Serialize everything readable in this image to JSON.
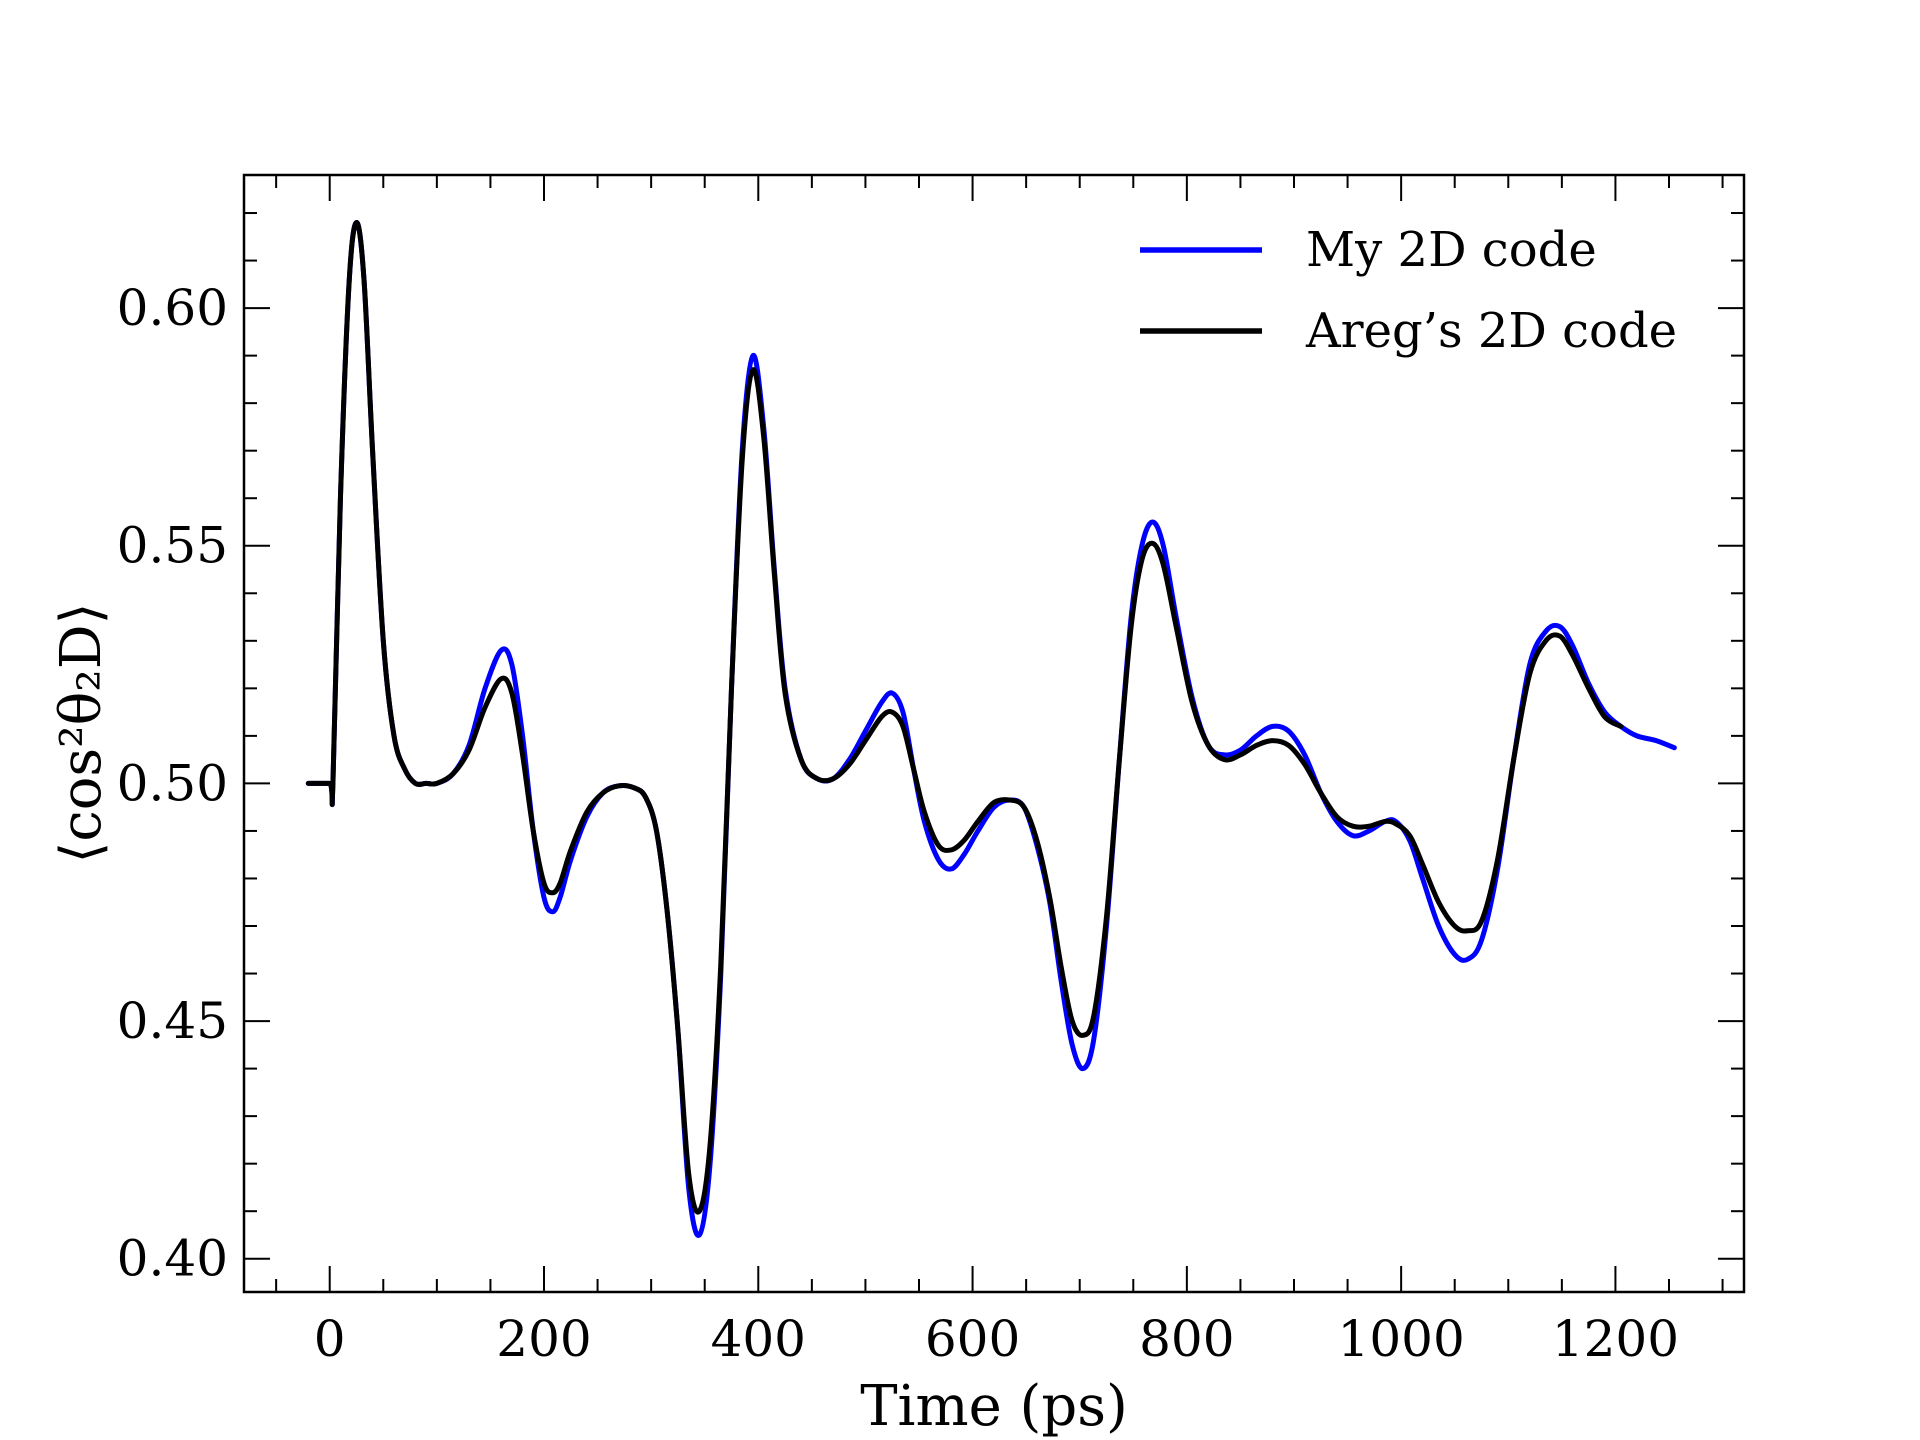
{
  "chart_data": {
    "type": "line",
    "title": "",
    "xlabel": "Time (ps)",
    "ylabel": "⟨cos²θ₂D⟩",
    "xlim": [
      -80,
      1320
    ],
    "ylim": [
      0.393,
      0.628
    ],
    "xticks": [
      0,
      200,
      400,
      600,
      800,
      1000,
      1200
    ],
    "xtick_labels": [
      "0",
      "200",
      "400",
      "600",
      "800",
      "1000",
      "1200"
    ],
    "yticks": [
      0.4,
      0.45,
      0.5,
      0.55,
      0.6
    ],
    "ytick_labels": [
      "0.40",
      "0.45",
      "0.50",
      "0.55",
      "0.60"
    ],
    "grid": false,
    "legend_position": "top-right",
    "series": [
      {
        "name": "My 2D code",
        "color": "#0000ff",
        "points": [
          [
            -20,
            0.5
          ],
          [
            0,
            0.5
          ],
          [
            3,
            0.5
          ],
          [
            10,
            0.56
          ],
          [
            18,
            0.605
          ],
          [
            25,
            0.618
          ],
          [
            32,
            0.606
          ],
          [
            40,
            0.57
          ],
          [
            50,
            0.53
          ],
          [
            60,
            0.51
          ],
          [
            70,
            0.503
          ],
          [
            80,
            0.5
          ],
          [
            90,
            0.5
          ],
          [
            100,
            0.5
          ],
          [
            115,
            0.502
          ],
          [
            130,
            0.508
          ],
          [
            145,
            0.52
          ],
          [
            160,
            0.528
          ],
          [
            170,
            0.525
          ],
          [
            180,
            0.51
          ],
          [
            190,
            0.49
          ],
          [
            200,
            0.476
          ],
          [
            208,
            0.473
          ],
          [
            215,
            0.476
          ],
          [
            225,
            0.484
          ],
          [
            240,
            0.493
          ],
          [
            255,
            0.498
          ],
          [
            270,
            0.4995
          ],
          [
            285,
            0.499
          ],
          [
            295,
            0.497
          ],
          [
            305,
            0.49
          ],
          [
            315,
            0.473
          ],
          [
            325,
            0.448
          ],
          [
            335,
            0.415
          ],
          [
            345,
            0.405
          ],
          [
            355,
            0.42
          ],
          [
            365,
            0.46
          ],
          [
            375,
            0.52
          ],
          [
            385,
            0.57
          ],
          [
            395,
            0.59
          ],
          [
            405,
            0.575
          ],
          [
            415,
            0.545
          ],
          [
            425,
            0.52
          ],
          [
            440,
            0.505
          ],
          [
            455,
            0.501
          ],
          [
            470,
            0.501
          ],
          [
            485,
            0.505
          ],
          [
            500,
            0.511
          ],
          [
            515,
            0.517
          ],
          [
            525,
            0.519
          ],
          [
            535,
            0.515
          ],
          [
            545,
            0.503
          ],
          [
            555,
            0.492
          ],
          [
            568,
            0.484
          ],
          [
            580,
            0.482
          ],
          [
            592,
            0.485
          ],
          [
            605,
            0.49
          ],
          [
            620,
            0.495
          ],
          [
            635,
            0.4965
          ],
          [
            648,
            0.495
          ],
          [
            660,
            0.487
          ],
          [
            672,
            0.475
          ],
          [
            683,
            0.458
          ],
          [
            693,
            0.445
          ],
          [
            703,
            0.44
          ],
          [
            713,
            0.446
          ],
          [
            725,
            0.47
          ],
          [
            737,
            0.505
          ],
          [
            748,
            0.535
          ],
          [
            758,
            0.55
          ],
          [
            768,
            0.555
          ],
          [
            778,
            0.55
          ],
          [
            790,
            0.535
          ],
          [
            805,
            0.518
          ],
          [
            820,
            0.508
          ],
          [
            835,
            0.506
          ],
          [
            850,
            0.507
          ],
          [
            865,
            0.51
          ],
          [
            880,
            0.512
          ],
          [
            895,
            0.511
          ],
          [
            910,
            0.506
          ],
          [
            925,
            0.498
          ],
          [
            940,
            0.492
          ],
          [
            955,
            0.489
          ],
          [
            970,
            0.49
          ],
          [
            985,
            0.492
          ],
          [
            995,
            0.492
          ],
          [
            1008,
            0.488
          ],
          [
            1020,
            0.48
          ],
          [
            1035,
            0.47
          ],
          [
            1050,
            0.464
          ],
          [
            1062,
            0.463
          ],
          [
            1075,
            0.467
          ],
          [
            1090,
            0.482
          ],
          [
            1105,
            0.505
          ],
          [
            1120,
            0.525
          ],
          [
            1135,
            0.532
          ],
          [
            1148,
            0.533
          ],
          [
            1160,
            0.529
          ],
          [
            1175,
            0.521
          ],
          [
            1190,
            0.515
          ],
          [
            1205,
            0.512
          ],
          [
            1220,
            0.51
          ],
          [
            1238,
            0.509
          ],
          [
            1255,
            0.5075
          ]
        ]
      },
      {
        "name": "Areg’s 2D code",
        "color": "#000000",
        "points": [
          [
            -20,
            0.5
          ],
          [
            0,
            0.5
          ],
          [
            3,
            0.5
          ],
          [
            10,
            0.56
          ],
          [
            18,
            0.605
          ],
          [
            25,
            0.618
          ],
          [
            32,
            0.606
          ],
          [
            40,
            0.57
          ],
          [
            50,
            0.53
          ],
          [
            60,
            0.51
          ],
          [
            70,
            0.503
          ],
          [
            80,
            0.5
          ],
          [
            90,
            0.5
          ],
          [
            100,
            0.5
          ],
          [
            115,
            0.502
          ],
          [
            130,
            0.507
          ],
          [
            145,
            0.516
          ],
          [
            160,
            0.522
          ],
          [
            170,
            0.519
          ],
          [
            180,
            0.506
          ],
          [
            190,
            0.49
          ],
          [
            200,
            0.479
          ],
          [
            208,
            0.477
          ],
          [
            215,
            0.479
          ],
          [
            225,
            0.486
          ],
          [
            240,
            0.494
          ],
          [
            255,
            0.498
          ],
          [
            270,
            0.4995
          ],
          [
            285,
            0.499
          ],
          [
            295,
            0.497
          ],
          [
            305,
            0.49
          ],
          [
            315,
            0.473
          ],
          [
            325,
            0.448
          ],
          [
            335,
            0.418
          ],
          [
            345,
            0.41
          ],
          [
            355,
            0.424
          ],
          [
            365,
            0.462
          ],
          [
            375,
            0.52
          ],
          [
            385,
            0.568
          ],
          [
            395,
            0.587
          ],
          [
            405,
            0.573
          ],
          [
            415,
            0.544
          ],
          [
            425,
            0.519
          ],
          [
            440,
            0.505
          ],
          [
            455,
            0.501
          ],
          [
            470,
            0.501
          ],
          [
            485,
            0.504
          ],
          [
            500,
            0.509
          ],
          [
            515,
            0.514
          ],
          [
            525,
            0.515
          ],
          [
            535,
            0.512
          ],
          [
            545,
            0.503
          ],
          [
            555,
            0.494
          ],
          [
            568,
            0.487
          ],
          [
            580,
            0.486
          ],
          [
            592,
            0.488
          ],
          [
            605,
            0.492
          ],
          [
            620,
            0.496
          ],
          [
            635,
            0.4965
          ],
          [
            648,
            0.495
          ],
          [
            660,
            0.488
          ],
          [
            672,
            0.476
          ],
          [
            683,
            0.461
          ],
          [
            693,
            0.45
          ],
          [
            703,
            0.447
          ],
          [
            713,
            0.451
          ],
          [
            725,
            0.472
          ],
          [
            737,
            0.505
          ],
          [
            748,
            0.533
          ],
          [
            758,
            0.547
          ],
          [
            768,
            0.5505
          ],
          [
            778,
            0.546
          ],
          [
            790,
            0.533
          ],
          [
            805,
            0.517
          ],
          [
            820,
            0.508
          ],
          [
            835,
            0.505
          ],
          [
            850,
            0.506
          ],
          [
            865,
            0.508
          ],
          [
            880,
            0.509
          ],
          [
            895,
            0.508
          ],
          [
            910,
            0.504
          ],
          [
            925,
            0.498
          ],
          [
            940,
            0.493
          ],
          [
            955,
            0.491
          ],
          [
            970,
            0.491
          ],
          [
            985,
            0.492
          ],
          [
            995,
            0.4915
          ],
          [
            1008,
            0.489
          ],
          [
            1020,
            0.483
          ],
          [
            1035,
            0.475
          ],
          [
            1050,
            0.47
          ],
          [
            1062,
            0.469
          ],
          [
            1075,
            0.471
          ],
          [
            1090,
            0.484
          ],
          [
            1105,
            0.505
          ],
          [
            1120,
            0.523
          ],
          [
            1135,
            0.53
          ],
          [
            1148,
            0.531
          ],
          [
            1160,
            0.527
          ],
          [
            1175,
            0.52
          ],
          [
            1190,
            0.514
          ],
          [
            1205,
            0.512
          ]
        ]
      }
    ]
  }
}
